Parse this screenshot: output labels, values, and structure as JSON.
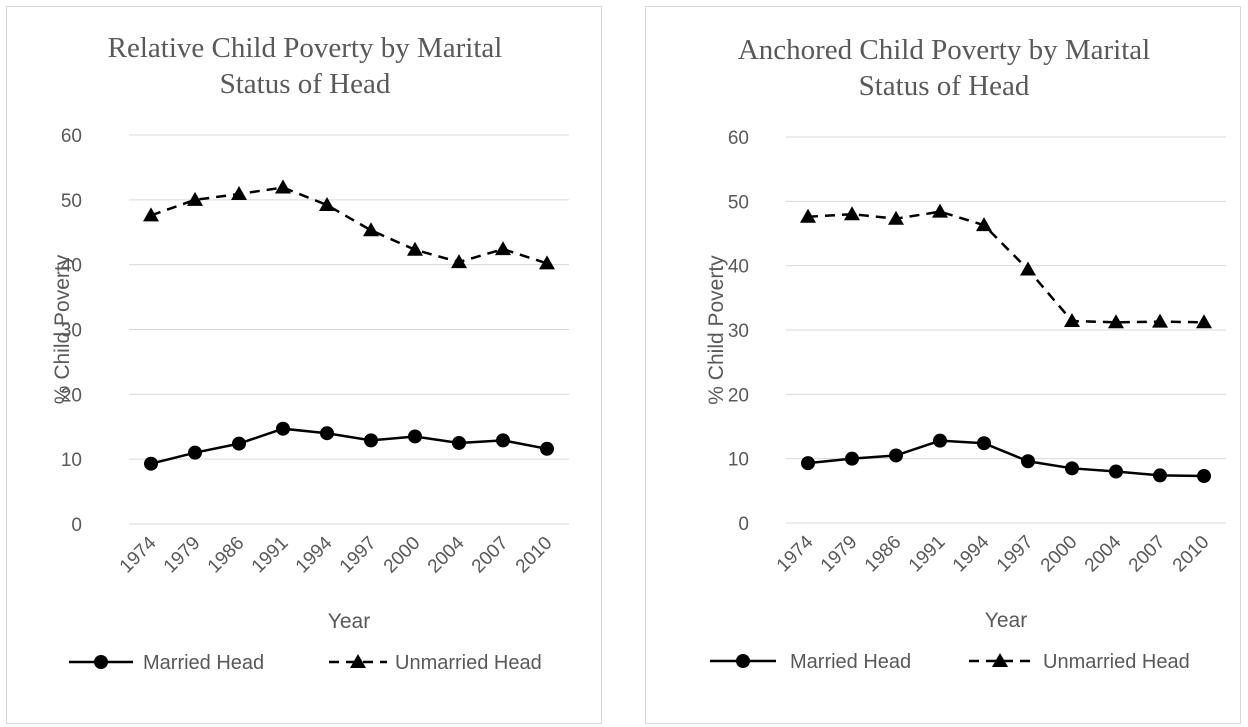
{
  "chart_data": [
    {
      "type": "line",
      "title": "Relative Child Poverty by Marital Status of Head",
      "xlabel": "Year",
      "ylabel": "% Child Poverty",
      "ylim": [
        0,
        60
      ],
      "yticks": [
        0,
        10,
        20,
        30,
        40,
        50,
        60
      ],
      "grid": true,
      "legend_position": "bottom",
      "categories": [
        "1974",
        "1979",
        "1986",
        "1991",
        "1994",
        "1997",
        "2000",
        "2004",
        "2007",
        "2010"
      ],
      "series": [
        {
          "name": "Married Head",
          "marker": "circle",
          "dash": "solid",
          "color": "#000000",
          "values": [
            9.3,
            11.0,
            12.4,
            14.7,
            14.0,
            12.9,
            13.5,
            12.5,
            12.9,
            11.6
          ]
        },
        {
          "name": "Unmarried Head",
          "marker": "triangle",
          "dash": "dashed",
          "color": "#000000",
          "values": [
            47.6,
            50.0,
            50.9,
            51.9,
            49.2,
            45.3,
            42.3,
            40.4,
            42.4,
            40.2
          ]
        }
      ]
    },
    {
      "type": "line",
      "title": "Anchored Child Poverty by Marital Status of Head",
      "xlabel": "Year",
      "ylabel": "% Child Poverty",
      "ylim": [
        0,
        60
      ],
      "yticks": [
        0,
        10,
        20,
        30,
        40,
        50,
        60
      ],
      "grid": true,
      "legend_position": "bottom",
      "categories": [
        "1974",
        "1979",
        "1986",
        "1991",
        "1994",
        "1997",
        "2000",
        "2004",
        "2007",
        "2010"
      ],
      "series": [
        {
          "name": "Married Head",
          "marker": "circle",
          "dash": "solid",
          "color": "#000000",
          "values": [
            9.3,
            10.0,
            10.5,
            12.8,
            12.4,
            9.6,
            8.5,
            8.0,
            7.4,
            7.3
          ]
        },
        {
          "name": "Unmarried Head",
          "marker": "triangle",
          "dash": "dashed",
          "color": "#000000",
          "values": [
            47.6,
            48.0,
            47.3,
            48.4,
            46.3,
            39.4,
            31.4,
            31.2,
            31.3,
            31.2
          ]
        }
      ]
    }
  ]
}
